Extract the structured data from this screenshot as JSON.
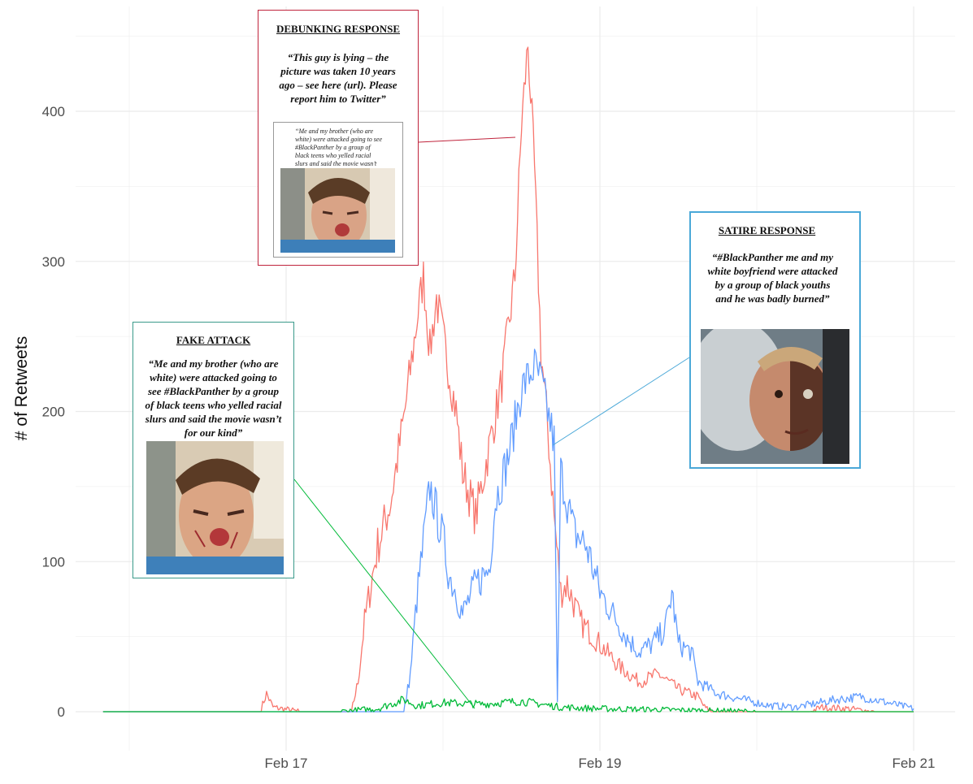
{
  "chart_data": {
    "type": "line",
    "xlabel": "",
    "ylabel": "# of Retweets",
    "x_ticks": [
      "Feb 17",
      "Feb 19",
      "Feb 21"
    ],
    "y_ticks": [
      0,
      100,
      200,
      300,
      400
    ],
    "ylim": [
      -20,
      470
    ],
    "xlim_days": [
      "Feb 16 00:00",
      "Feb 21 04:00"
    ],
    "grid": true,
    "legend": "none",
    "series": [
      {
        "color": "#F8766D",
        "points": [
          [
            "Feb 15 20:00",
            0
          ],
          [
            "Feb 16 20:00",
            0
          ],
          [
            "Feb 16 21:00",
            12
          ],
          [
            "Feb 16 22:00",
            3
          ],
          [
            "Feb 17 02:00",
            0
          ],
          [
            "Feb 17 10:00",
            0
          ],
          [
            "Feb 17 11:00",
            20
          ],
          [
            "Feb 17 12:00",
            60
          ],
          [
            "Feb 17 14:00",
            110
          ],
          [
            "Feb 17 16:00",
            140
          ],
          [
            "Feb 17 18:00",
            195
          ],
          [
            "Feb 17 20:00",
            260
          ],
          [
            "Feb 17 21:00",
            290
          ],
          [
            "Feb 17 22:00",
            240
          ],
          [
            "Feb 17 23:00",
            275
          ],
          [
            "Feb 18 00:00",
            250
          ],
          [
            "Feb 18 01:00",
            225
          ],
          [
            "Feb 18 02:00",
            200
          ],
          [
            "Feb 18 03:00",
            160
          ],
          [
            "Feb 18 05:00",
            130
          ],
          [
            "Feb 18 07:00",
            175
          ],
          [
            "Feb 18 09:00",
            220
          ],
          [
            "Feb 18 11:00",
            290
          ],
          [
            "Feb 18 12:00",
            390
          ],
          [
            "Feb 18 13:00",
            445
          ],
          [
            "Feb 18 14:00",
            360
          ],
          [
            "Feb 18 15:00",
            240
          ],
          [
            "Feb 18 16:00",
            190
          ],
          [
            "Feb 18 17:00",
            130
          ],
          [
            "Feb 18 18:00",
            80
          ],
          [
            "Feb 18 19:00",
            85
          ],
          [
            "Feb 18 21:00",
            60
          ],
          [
            "Feb 18 23:00",
            50
          ],
          [
            "Feb 19 01:00",
            40
          ],
          [
            "Feb 19 03:00",
            30
          ],
          [
            "Feb 19 06:00",
            20
          ],
          [
            "Feb 19 09:00",
            25
          ],
          [
            "Feb 19 12:00",
            15
          ],
          [
            "Feb 19 15:00",
            10
          ],
          [
            "Feb 19 16:00",
            3
          ],
          [
            "Feb 19 17:00",
            0
          ],
          [
            "Feb 20 08:00",
            0
          ],
          [
            "Feb 20 10:00",
            3
          ],
          [
            "Feb 20 14:00",
            2
          ],
          [
            "Feb 20 18:00",
            0
          ],
          [
            "Feb 21 00:00",
            0
          ]
        ]
      },
      {
        "color": "#619CFF",
        "points": [
          [
            "Feb 15 20:00",
            0
          ],
          [
            "Feb 17 18:00",
            0
          ],
          [
            "Feb 17 19:00",
            25
          ],
          [
            "Feb 17 20:00",
            75
          ],
          [
            "Feb 17 22:00",
            150
          ],
          [
            "Feb 18 00:00",
            115
          ],
          [
            "Feb 18 01:00",
            90
          ],
          [
            "Feb 18 02:00",
            80
          ],
          [
            "Feb 18 03:00",
            65
          ],
          [
            "Feb 18 05:00",
            85
          ],
          [
            "Feb 18 07:00",
            95
          ],
          [
            "Feb 18 08:00",
            140
          ],
          [
            "Feb 18 10:00",
            170
          ],
          [
            "Feb 18 12:00",
            215
          ],
          [
            "Feb 18 14:00",
            230
          ],
          [
            "Feb 18 15:00",
            220
          ],
          [
            "Feb 18 16:00",
            200
          ],
          [
            "Feb 18 17:00",
            180
          ],
          [
            "Feb 18 17:30",
            5
          ],
          [
            "Feb 18 18:00",
            160
          ],
          [
            "Feb 18 20:00",
            120
          ],
          [
            "Feb 18 22:00",
            110
          ],
          [
            "Feb 19 00:00",
            80
          ],
          [
            "Feb 19 02:00",
            65
          ],
          [
            "Feb 19 04:00",
            50
          ],
          [
            "Feb 19 06:00",
            40
          ],
          [
            "Feb 19 08:00",
            45
          ],
          [
            "Feb 19 10:00",
            55
          ],
          [
            "Feb 19 11:00",
            80
          ],
          [
            "Feb 19 12:00",
            45
          ],
          [
            "Feb 19 14:00",
            40
          ],
          [
            "Feb 19 15:00",
            20
          ],
          [
            "Feb 19 18:00",
            12
          ],
          [
            "Feb 19 22:00",
            8
          ],
          [
            "Feb 20 02:00",
            4
          ],
          [
            "Feb 20 06:00",
            3
          ],
          [
            "Feb 20 12:00",
            8
          ],
          [
            "Feb 20 16:00",
            10
          ],
          [
            "Feb 20 20:00",
            6
          ],
          [
            "Feb 21 00:00",
            2
          ]
        ]
      },
      {
        "color": "#00BA38",
        "points": [
          [
            "Feb 15 20:00",
            0
          ],
          [
            "Feb 17 08:00",
            0
          ],
          [
            "Feb 17 14:00",
            2
          ],
          [
            "Feb 17 18:00",
            8
          ],
          [
            "Feb 17 20:00",
            4
          ],
          [
            "Feb 18 00:00",
            6
          ],
          [
            "Feb 18 06:00",
            5
          ],
          [
            "Feb 18 12:00",
            7
          ],
          [
            "Feb 18 18:00",
            3
          ],
          [
            "Feb 19 00:00",
            2
          ],
          [
            "Feb 19 12:00",
            1
          ],
          [
            "Feb 20 00:00",
            0
          ],
          [
            "Feb 21 00:00",
            0
          ]
        ]
      }
    ]
  },
  "annotations": {
    "debunk": {
      "title": "DEBUNKING RESPONSE",
      "quote": "“This guy is lying – the picture was taken 10 years ago – see here (url). Please report him to Twitter”",
      "tweet_text": "“Me and my brother (who are white) were attacked going to see #BlackPanther by a group of black teens who yelled racial slurs and said the movie wasn’t for our kind”",
      "border_color": "#c0243c"
    },
    "satire": {
      "title": "SATIRE RESPONSE",
      "quote": "“#BlackPanther me and my white boyfriend were attacked by a group of black youths and he was badly burned”",
      "border_color": "#4aa8d8"
    },
    "fake": {
      "title": "FAKE ATTACK",
      "quote": "“Me and my brother (who are white) were attacked going to see #BlackPanther by a group of black teens who yelled racial slurs and said the movie wasn’t for our kind”",
      "border_color": "#3a9a8a"
    }
  }
}
